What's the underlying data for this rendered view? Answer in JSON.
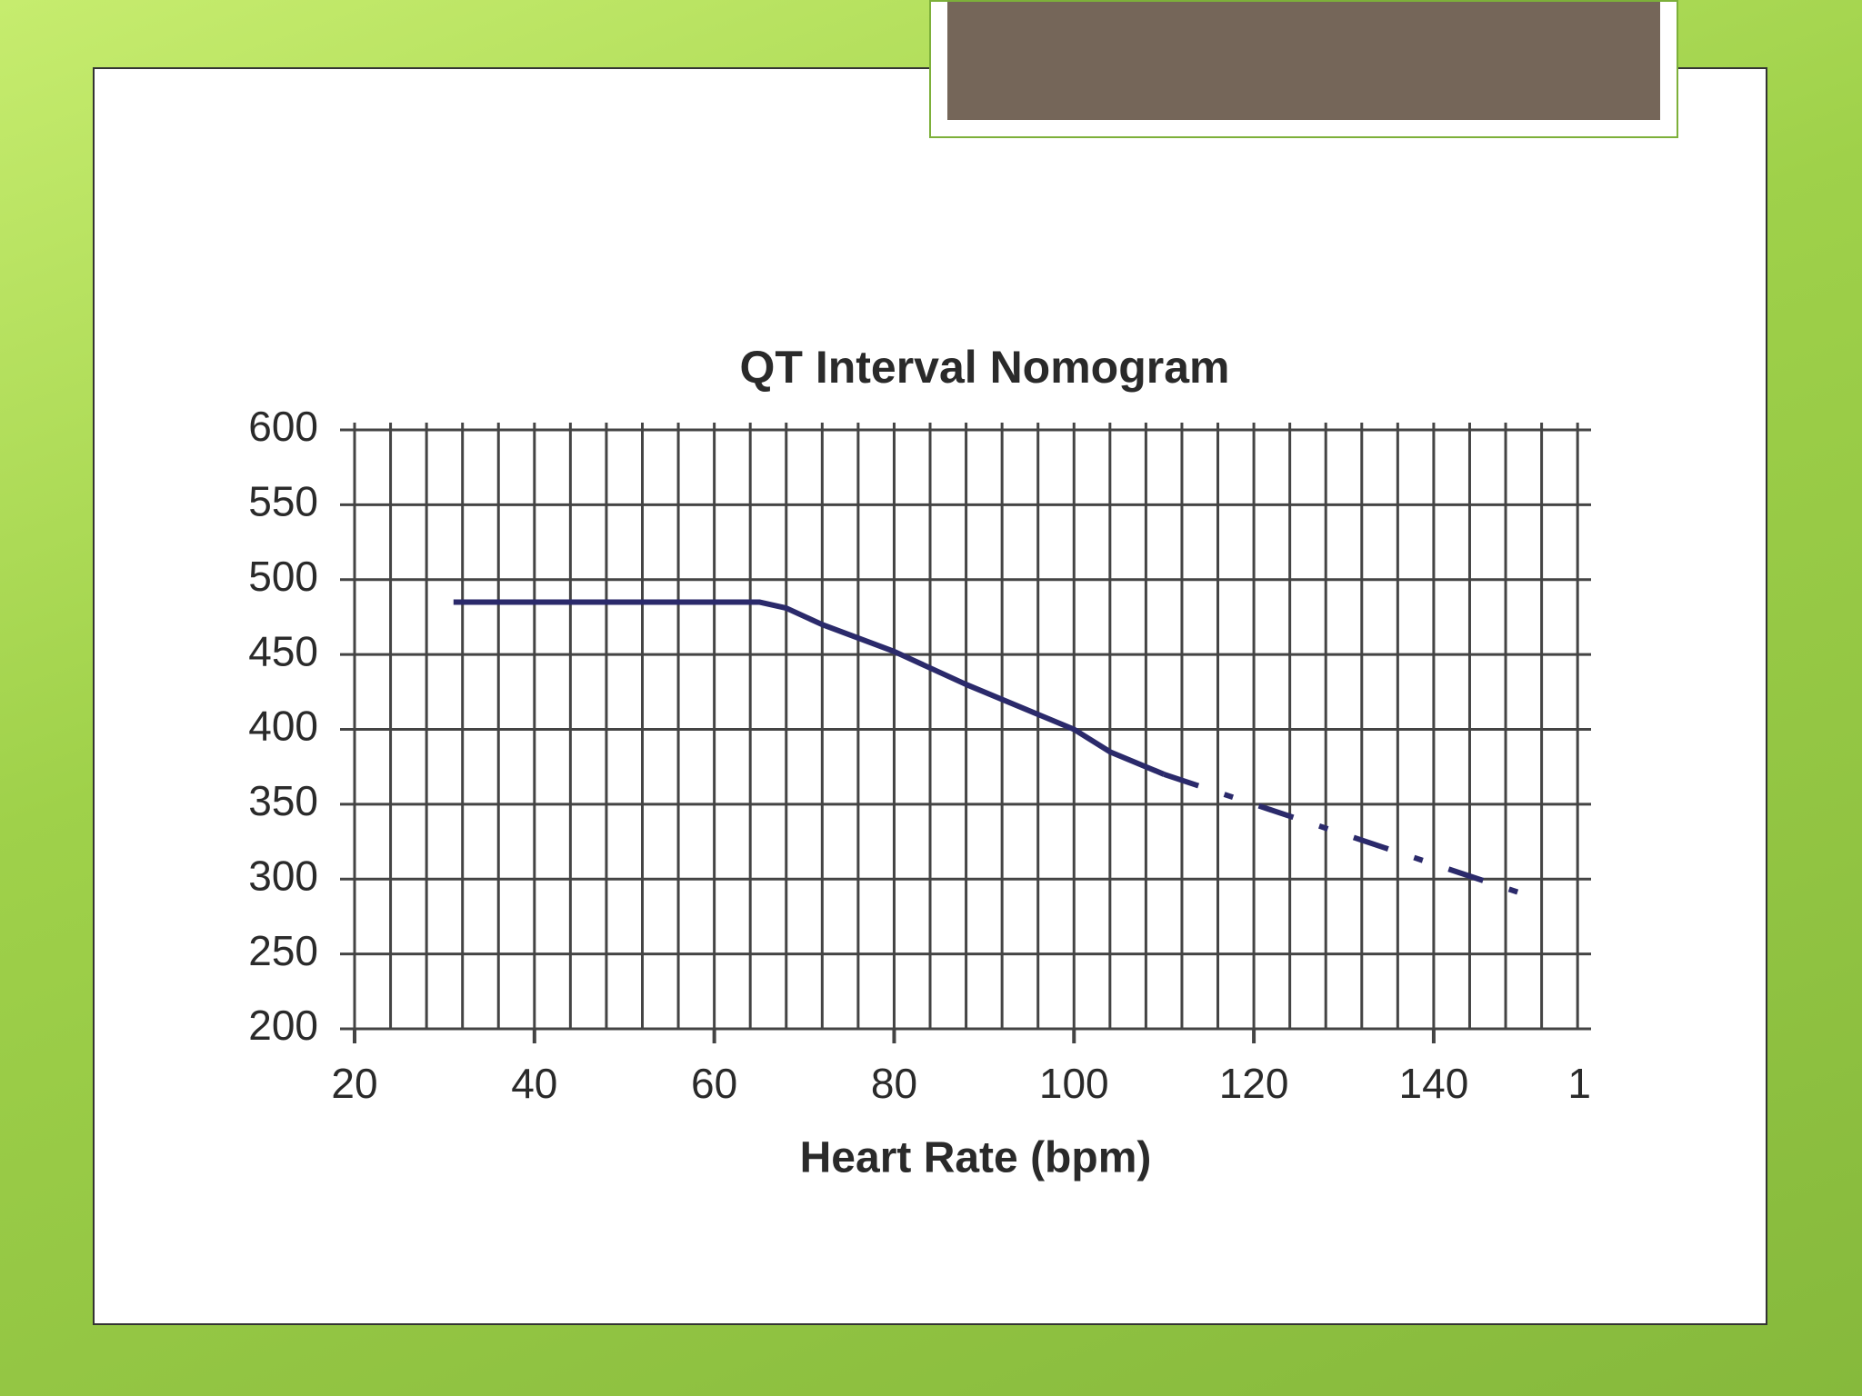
{
  "chart_data": {
    "type": "line",
    "title": "QT Interval Nomogram",
    "x_label": "Heart Rate (bpm)",
    "xlim": [
      20,
      157.5
    ],
    "ylim": [
      200,
      600
    ],
    "xticks": [
      20,
      40,
      60,
      80,
      100,
      120,
      140,
      {
        "value": 160,
        "label": "1"
      }
    ],
    "yticks": [
      200,
      250,
      300,
      350,
      400,
      450,
      500,
      550,
      600
    ],
    "xgrid": [
      20,
      24,
      28,
      32,
      36,
      40,
      44,
      48,
      52,
      56,
      60,
      64,
      68,
      72,
      76,
      80,
      84,
      88,
      92,
      96,
      100,
      104,
      108,
      112,
      116,
      120,
      124,
      128,
      132,
      136,
      140,
      144,
      148,
      152,
      156
    ],
    "grid": true,
    "series": [
      {
        "color": "#2b2a6b",
        "style": "solid",
        "x": [
          31,
          65,
          68,
          72,
          80,
          88,
          100,
          104,
          110
        ],
        "values": [
          485,
          485,
          481,
          470,
          452,
          430,
          400,
          385,
          370
        ]
      },
      {
        "color": "#2b2a6b",
        "style": "dashed",
        "x": [
          110,
          152
        ],
        "values": [
          370,
          286
        ]
      }
    ]
  }
}
